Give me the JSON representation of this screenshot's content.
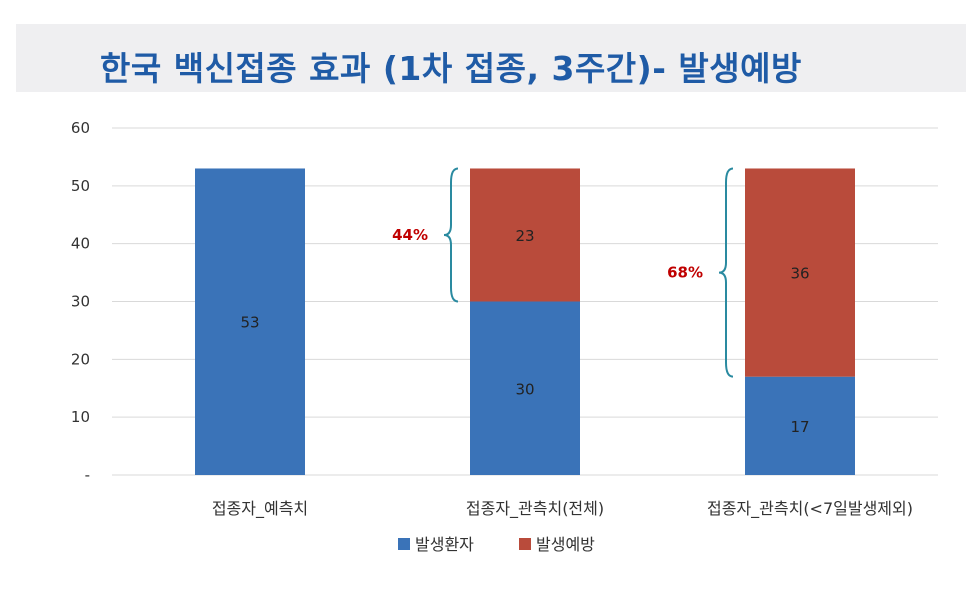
{
  "title": "한국 백신접종 효과 (1차 접종, 3주간)- 발생예방",
  "chart_data": {
    "type": "bar",
    "stacked": true,
    "categories": [
      "접종자_예측치",
      "접종자_관측치(전체)",
      "접종자_관측치(<7일발생제외)"
    ],
    "series": [
      {
        "name": "발생환자",
        "values": [
          53,
          30,
          17
        ],
        "color": "#3a73b8"
      },
      {
        "name": "발생예방",
        "values": [
          0,
          23,
          36
        ],
        "color": "#b94b3b"
      }
    ],
    "ylim": [
      0,
      60
    ],
    "yticks": [
      {
        "value": 0,
        "label": "-"
      },
      {
        "value": 10,
        "label": "10"
      },
      {
        "value": 20,
        "label": "20"
      },
      {
        "value": 30,
        "label": "30"
      },
      {
        "value": 40,
        "label": "40"
      },
      {
        "value": 50,
        "label": "50"
      },
      {
        "value": 60,
        "label": "60"
      }
    ],
    "grid": true,
    "legend_position": "bottom",
    "annotations": [
      {
        "label": "44%",
        "category_index": 1,
        "from": 30,
        "to": 53,
        "color": "#c00000"
      },
      {
        "label": "68%",
        "category_index": 2,
        "from": 17,
        "to": 53,
        "color": "#c00000"
      }
    ],
    "brace_color": "#2a8aa0"
  }
}
